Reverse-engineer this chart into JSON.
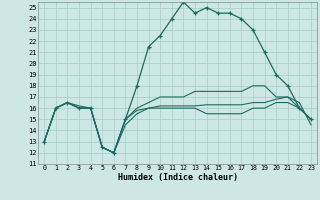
{
  "xlabel": "Humidex (Indice chaleur)",
  "bg_color": "#cde8e4",
  "grid_color": "#a8cdc9",
  "line_color": "#1a6b60",
  "xlim": [
    -0.5,
    23.5
  ],
  "ylim": [
    11,
    25.5
  ],
  "yticks": [
    11,
    12,
    13,
    14,
    15,
    16,
    17,
    18,
    19,
    20,
    21,
    22,
    23,
    24,
    25
  ],
  "xticks": [
    0,
    1,
    2,
    3,
    4,
    5,
    6,
    7,
    8,
    9,
    10,
    11,
    12,
    13,
    14,
    15,
    16,
    17,
    18,
    19,
    20,
    21,
    22,
    23
  ],
  "series": {
    "main": [
      13,
      16,
      16.5,
      16,
      16,
      12.5,
      12,
      15,
      18,
      21.5,
      22.5,
      24,
      25.5,
      24.5,
      25,
      24.5,
      24.5,
      24,
      23,
      21,
      19,
      18,
      16,
      15
    ],
    "line2": [
      13,
      16,
      16.5,
      16,
      16,
      12.5,
      12,
      15,
      16,
      16.5,
      17,
      17,
      17,
      17.5,
      17.5,
      17.5,
      17.5,
      17.5,
      18,
      18,
      17,
      17,
      16,
      15
    ],
    "line3": [
      13,
      16,
      16.5,
      16,
      16,
      12.5,
      12,
      15,
      15.8,
      16,
      16,
      16,
      16,
      16,
      15.5,
      15.5,
      15.5,
      15.5,
      16,
      16,
      16.5,
      16.5,
      16,
      15
    ],
    "line4": [
      13,
      16,
      16.5,
      16.2,
      16,
      12.5,
      12,
      14.5,
      15.5,
      16,
      16.2,
      16.2,
      16.2,
      16.2,
      16.3,
      16.3,
      16.3,
      16.3,
      16.5,
      16.5,
      16.8,
      17,
      16.5,
      14.5
    ]
  }
}
